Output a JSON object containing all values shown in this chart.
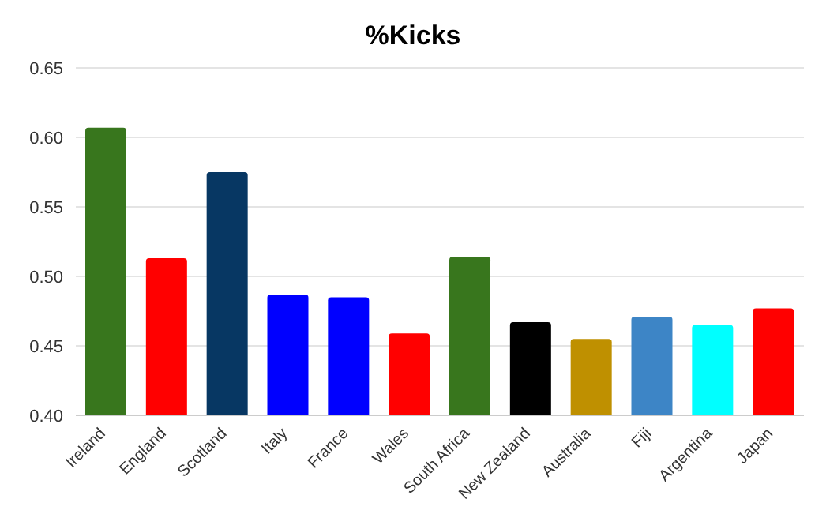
{
  "chart_data": {
    "type": "bar",
    "title": "%Kicks",
    "categories": [
      "Ireland",
      "England",
      "Scotland",
      "Italy",
      "France",
      "Wales",
      "South Africa",
      "New Zealand",
      "Australia",
      "Fiji",
      "Argentina",
      "Japan"
    ],
    "values": [
      0.607,
      0.513,
      0.575,
      0.487,
      0.485,
      0.459,
      0.514,
      0.467,
      0.455,
      0.471,
      0.465,
      0.477
    ],
    "colors": [
      "#38761d",
      "#ff0000",
      "#073763",
      "#0000ff",
      "#0000ff",
      "#ff0000",
      "#38761d",
      "#000000",
      "#bf9000",
      "#3d85c6",
      "#00ffff",
      "#ff0000"
    ],
    "ylim": [
      0.4,
      0.65
    ],
    "yticks": [
      {
        "value": 0.4,
        "label": "0.40"
      },
      0.45,
      {
        "value": 0.5,
        "label": "0.50"
      },
      0.55,
      {
        "value": 0.6,
        "label": "0.60"
      },
      0.65
    ],
    "grid": "y",
    "legend": false
  }
}
